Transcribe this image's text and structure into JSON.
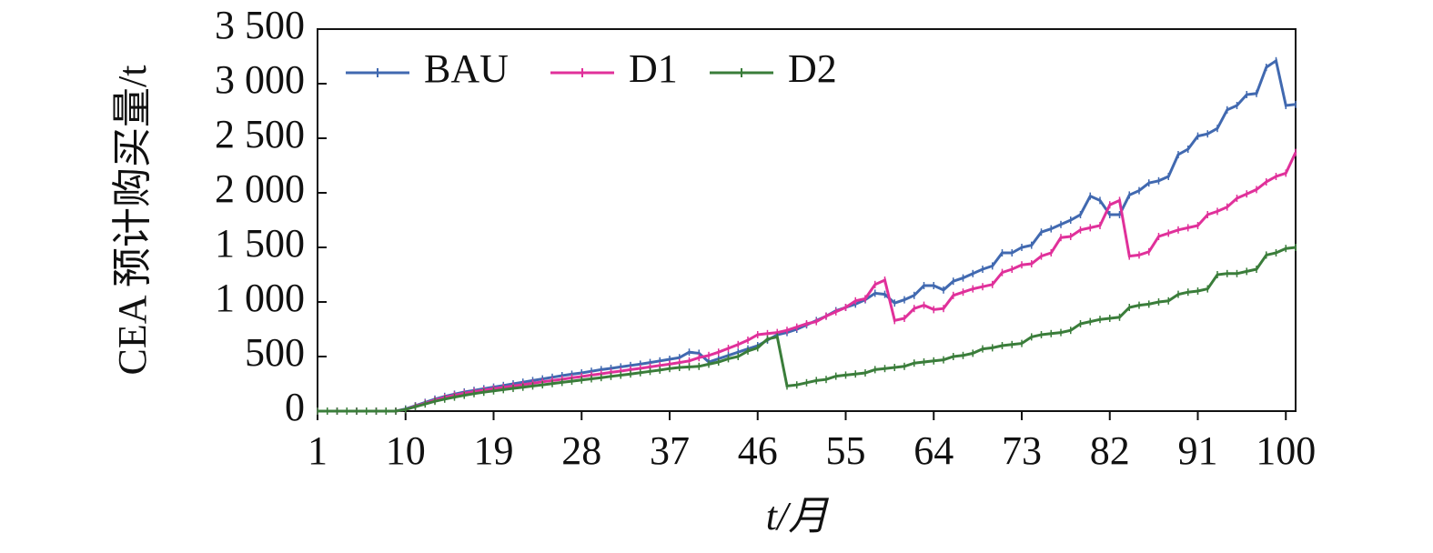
{
  "chart_data": {
    "type": "line",
    "xlabel": "t/月",
    "ylabel": "CEA 预计购买量/t",
    "x": [
      1,
      2,
      3,
      4,
      5,
      6,
      7,
      8,
      9,
      10,
      11,
      12,
      13,
      14,
      15,
      16,
      17,
      18,
      19,
      20,
      21,
      22,
      23,
      24,
      25,
      26,
      27,
      28,
      29,
      30,
      31,
      32,
      33,
      34,
      35,
      36,
      37,
      38,
      39,
      40,
      41,
      42,
      43,
      44,
      45,
      46,
      47,
      48,
      49,
      50,
      51,
      52,
      53,
      54,
      55,
      56,
      57,
      58,
      59,
      60,
      61,
      62,
      63,
      64,
      65,
      66,
      67,
      68,
      69,
      70,
      71,
      72,
      73,
      74,
      75,
      76,
      77,
      78,
      79,
      80,
      81,
      82,
      83,
      84,
      85,
      86,
      87,
      88,
      89,
      90,
      91,
      92,
      93,
      94,
      95,
      96,
      97,
      98,
      99,
      100,
      101
    ],
    "series": [
      {
        "name": "BAU",
        "color": "#4169b0",
        "values": [
          0,
          0,
          0,
          0,
          0,
          0,
          0,
          0,
          0,
          20,
          50,
          80,
          110,
          135,
          155,
          175,
          190,
          205,
          220,
          235,
          250,
          265,
          280,
          295,
          310,
          325,
          338,
          350,
          365,
          380,
          392,
          405,
          418,
          430,
          445,
          460,
          475,
          490,
          540,
          530,
          450,
          480,
          510,
          540,
          570,
          600,
          650,
          700,
          720,
          750,
          790,
          830,
          870,
          920,
          950,
          980,
          1020,
          1080,
          1070,
          990,
          1020,
          1060,
          1150,
          1150,
          1110,
          1190,
          1220,
          1260,
          1300,
          1330,
          1450,
          1450,
          1500,
          1520,
          1640,
          1670,
          1710,
          1750,
          1800,
          1970,
          1930,
          1800,
          1800,
          1980,
          2020,
          2090,
          2110,
          2150,
          2350,
          2400,
          2520,
          2540,
          2590,
          2760,
          2800,
          2900,
          2910,
          3150,
          3210,
          2800,
          2810
        ]
      },
      {
        "name": "D1",
        "color": "#e0309a",
        "values": [
          0,
          0,
          0,
          0,
          0,
          0,
          0,
          0,
          0,
          15,
          45,
          72,
          100,
          125,
          145,
          163,
          178,
          192,
          205,
          218,
          230,
          243,
          256,
          268,
          280,
          292,
          305,
          317,
          330,
          342,
          355,
          367,
          380,
          392,
          405,
          418,
          430,
          445,
          460,
          490,
          510,
          540,
          575,
          610,
          650,
          700,
          710,
          720,
          740,
          770,
          800,
          820,
          870,
          910,
          950,
          1010,
          1030,
          1160,
          1200,
          830,
          850,
          940,
          970,
          930,
          940,
          1060,
          1090,
          1120,
          1140,
          1160,
          1270,
          1300,
          1340,
          1350,
          1420,
          1450,
          1590,
          1600,
          1660,
          1680,
          1700,
          1890,
          1930,
          1420,
          1430,
          1460,
          1600,
          1630,
          1660,
          1680,
          1700,
          1800,
          1830,
          1870,
          1950,
          1990,
          2030,
          2100,
          2150,
          2180,
          2370
        ]
      },
      {
        "name": "D2",
        "color": "#3a7d3a",
        "values": [
          0,
          0,
          0,
          0,
          0,
          0,
          0,
          0,
          0,
          15,
          40,
          65,
          90,
          110,
          128,
          145,
          160,
          173,
          185,
          197,
          208,
          219,
          230,
          241,
          252,
          263,
          274,
          285,
          296,
          307,
          318,
          329,
          340,
          352,
          364,
          376,
          390,
          400,
          405,
          410,
          430,
          450,
          480,
          500,
          550,
          580,
          660,
          680,
          230,
          240,
          260,
          280,
          290,
          320,
          330,
          340,
          350,
          380,
          390,
          400,
          410,
          440,
          450,
          460,
          470,
          500,
          510,
          530,
          570,
          580,
          600,
          610,
          620,
          680,
          700,
          710,
          720,
          740,
          800,
          820,
          840,
          850,
          860,
          950,
          970,
          980,
          1000,
          1010,
          1070,
          1090,
          1100,
          1120,
          1250,
          1260,
          1260,
          1280,
          1300,
          1430,
          1450,
          1490,
          1500
        ]
      }
    ],
    "xlim": [
      1,
      101
    ],
    "xticks": [
      1,
      10,
      19,
      28,
      37,
      46,
      55,
      64,
      73,
      82,
      91,
      100
    ],
    "ylim": [
      0,
      3500
    ],
    "yticks": [
      0,
      500,
      {
        "value": 1000,
        "label": "1 000"
      },
      {
        "value": 1500,
        "label": "1 500"
      },
      {
        "value": 2000,
        "label": "2 000"
      },
      {
        "value": 2500,
        "label": "2 500"
      },
      {
        "value": 3000,
        "label": "3 000"
      },
      {
        "value": 3500,
        "label": "3 500"
      }
    ],
    "legend": "top-left"
  }
}
